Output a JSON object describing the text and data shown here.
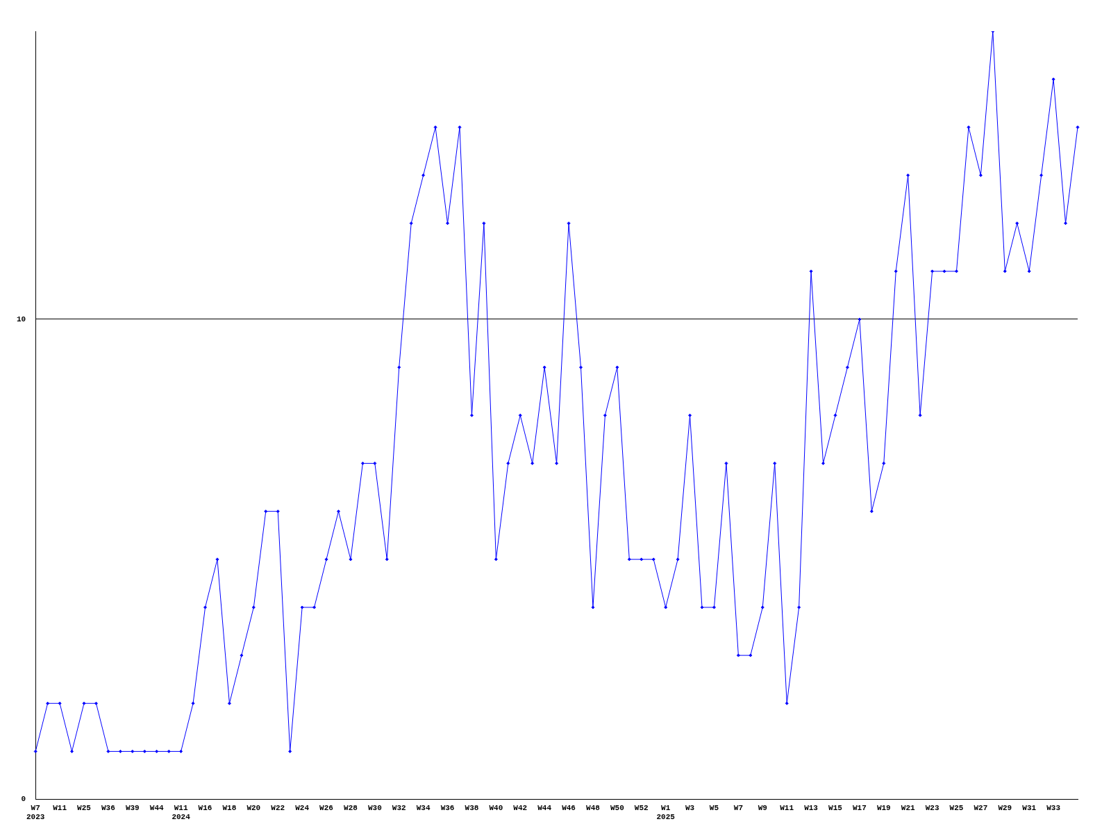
{
  "chart_data": {
    "type": "line",
    "categories": [
      "W7\n2023",
      null,
      "W11",
      null,
      "W25",
      null,
      "W36",
      null,
      "W39",
      null,
      "W44",
      null,
      "W11\n2024",
      null,
      "W16",
      null,
      "W18",
      null,
      "W20",
      null,
      "W22",
      null,
      "W24",
      null,
      "W26",
      null,
      "W28",
      null,
      "W30",
      null,
      "W32",
      null,
      "W34",
      null,
      "W36",
      null,
      "W38",
      null,
      "W40",
      null,
      "W42",
      null,
      "W44",
      null,
      "W46",
      null,
      "W48",
      null,
      "W50",
      null,
      "W52",
      null,
      "W1\n2025",
      null,
      "W3",
      null,
      "W5",
      null,
      "W7",
      null,
      "W9",
      null,
      "W11",
      null,
      "W13",
      null,
      "W15",
      null,
      "W17",
      null,
      "W19",
      null,
      "W21",
      null,
      "W23",
      null,
      "W25",
      null,
      "W27",
      null,
      "W29",
      null,
      "W31",
      null,
      "W33",
      null,
      null
    ],
    "series": [
      {
        "color": "#0000ff",
        "values": [
          1,
          2,
          2,
          1,
          2,
          2,
          1,
          1,
          1,
          1,
          1,
          1,
          1,
          2,
          4,
          5,
          2,
          3,
          4,
          6,
          6,
          1,
          4,
          4,
          5,
          6,
          5,
          7,
          7,
          5,
          9,
          12,
          13,
          14,
          12,
          14,
          8,
          12,
          5,
          7,
          8,
          7,
          9,
          7,
          12,
          9,
          4,
          8,
          9,
          5,
          5,
          5,
          4,
          5,
          8,
          4,
          4,
          7,
          3,
          3,
          4,
          7,
          2,
          4,
          11,
          7,
          8,
          9,
          10,
          6,
          7,
          11,
          13,
          8,
          11,
          11,
          11,
          14,
          13,
          16,
          11,
          12,
          11,
          13,
          15,
          12,
          14
        ]
      }
    ],
    "ylim": [
      0,
      16
    ],
    "yticks": [
      0,
      10
    ],
    "grid": "y",
    "legend": false,
    "marker": "diamond",
    "line_style": "solid"
  }
}
